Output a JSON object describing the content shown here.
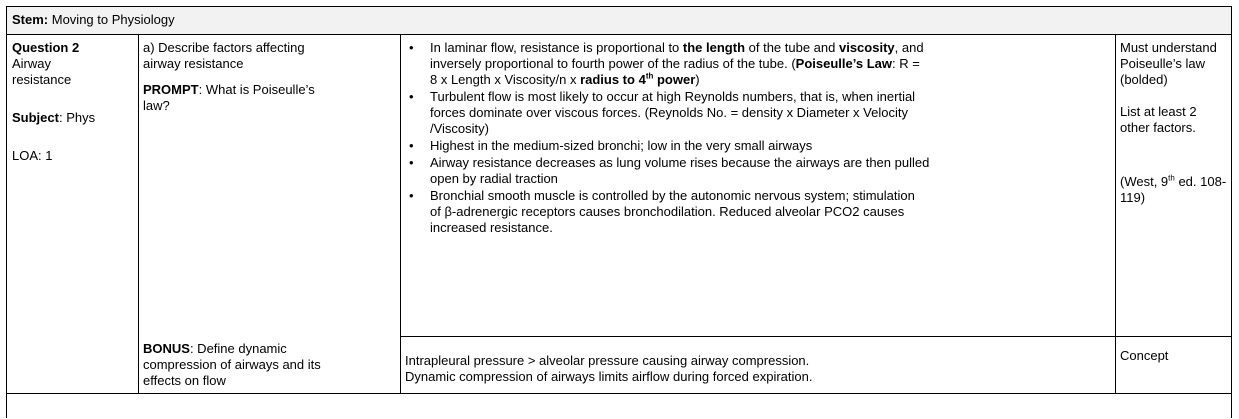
{
  "stem": {
    "label": "Stem:",
    "text": "Moving to Physiology"
  },
  "question": {
    "title": "Question 2",
    "topic_line1": "Airway",
    "topic_line2": "resistance",
    "subject_label": "Subject",
    "subject_value": ": Phys",
    "loa": "LOA: 1"
  },
  "part_a": {
    "prompt_line1": "a) Describe factors affecting",
    "prompt_line2": "airway resistance",
    "prompt_label": "PROMPT",
    "prompt_q1": ": What is Poiseulle’s",
    "prompt_q2": "law?"
  },
  "answers": {
    "b1_a": "In laminar flow, resistance is proportional to ",
    "b1_b": "the length",
    "b1_c": " of the tube and ",
    "b1_d": "viscosity",
    "b1_e": ", and",
    "b1_f": "inversely proportional to fourth power of the radius of the tube. (",
    "b1_g": "Poiseulle’s Law",
    "b1_h": ": R =",
    "b1_i": "8 x Length x Viscosity/n x ",
    "b1_j": "radius to 4",
    "b1_k": "th",
    "b1_l": " power",
    "b1_m": ")",
    "b2_a": "Turbulent flow is most likely to occur at high Reynolds numbers, that is, when inertial",
    "b2_b": "forces dominate over viscous forces. (Reynolds No. = density x Diameter x Velocity",
    "b2_c": "/Viscosity)",
    "b3": "Highest in the medium-sized bronchi; low in the very small airways",
    "b4_a": "Airway resistance decreases as lung volume rises because the airways are then pulled",
    "b4_b": "open by radial traction",
    "b5_a": "Bronchial smooth muscle is controlled by the autonomic nervous system; stimulation",
    "b5_b": "of β-adrenergic receptors causes bronchodilation. Reduced alveolar PCO2 causes",
    "b5_c": "increased resistance.",
    "bullet_char": "•"
  },
  "notes": {
    "n1": "Must understand",
    "n2": "Poiseulle’s law",
    "n3": "(bolded)",
    "n4": "List at least 2",
    "n5": "other factors.",
    "ref_a": "(West, 9",
    "ref_sup": "th",
    "ref_b": " ed. 108-",
    "ref_c": "119)"
  },
  "bonus": {
    "label": "BONUS",
    "line1": ": Define dynamic",
    "line2": "compression of airways and its",
    "line3": "effects on flow",
    "answer1": "Intrapleural pressure > alveolar pressure causing airway compression.",
    "answer2": "Dynamic compression of airways limits airflow during forced expiration.",
    "note": "Concept"
  }
}
